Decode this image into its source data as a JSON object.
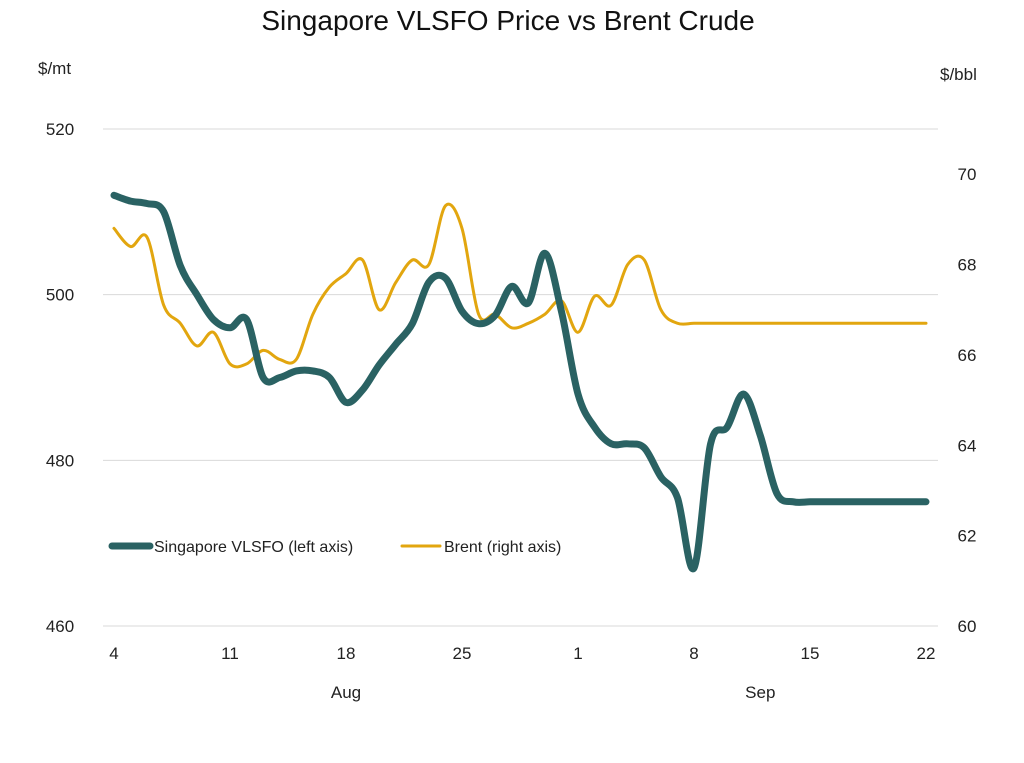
{
  "chart_data": {
    "type": "line",
    "title": "Singapore VLSFO Price vs Brent Crude",
    "left_axis": {
      "unit": "$/mt",
      "ylim": [
        460,
        520
      ],
      "ticks": [
        460,
        480,
        500,
        520
      ]
    },
    "right_axis": {
      "unit": "$/bbl",
      "ylim": [
        60,
        71
      ],
      "ticks": [
        60,
        62,
        64,
        66,
        68,
        70
      ]
    },
    "x_axis": {
      "tick_labels": [
        "4",
        "11",
        "18",
        "25",
        "1",
        "8",
        "15",
        "22"
      ],
      "tick_days": [
        4,
        11,
        18,
        25,
        32,
        39,
        46,
        53
      ],
      "month_labels": [
        {
          "label": "Aug",
          "day": 18
        },
        {
          "label": "Sep",
          "day": 43
        }
      ]
    },
    "grid": "horizontal",
    "legend_position": "lower-left",
    "series": [
      {
        "name": "Singapore VLSFO (left axis)",
        "axis": "left",
        "color": "#2a6263",
        "x": [
          4,
          5,
          6,
          7,
          8,
          9,
          10,
          11,
          12,
          13,
          14,
          15,
          16,
          17,
          18,
          19,
          20,
          21,
          22,
          23,
          24,
          25,
          26,
          27,
          28,
          29,
          30,
          31,
          32,
          33,
          34,
          35,
          36,
          37,
          38,
          39,
          40,
          41,
          42,
          43,
          44,
          45,
          46,
          47,
          48,
          49,
          50,
          51,
          52,
          53
        ],
        "values": [
          512,
          511.3,
          511,
          510,
          503.5,
          500,
          497,
          496,
          497,
          490,
          490,
          490.8,
          490.8,
          490,
          487,
          488.5,
          491.5,
          494,
          496.5,
          501.5,
          502,
          498,
          496.5,
          497.5,
          501,
          499,
          505,
          498,
          488,
          484,
          482,
          482,
          481.5,
          478,
          475.5,
          467,
          482,
          484,
          488,
          483,
          476,
          475,
          475,
          475,
          475,
          475,
          475,
          475,
          475,
          475
        ]
      },
      {
        "name": "Brent (right axis)",
        "axis": "right",
        "color": "#e2a60f",
        "x": [
          4,
          5,
          6,
          7,
          8,
          9,
          10,
          11,
          12,
          13,
          14,
          15,
          16,
          17,
          18,
          19,
          20,
          21,
          22,
          23,
          24,
          25,
          26,
          27,
          28,
          29,
          30,
          31,
          32,
          33,
          34,
          35,
          36,
          37,
          38,
          39,
          40,
          41,
          42,
          43,
          44,
          45,
          46,
          47,
          48,
          49,
          50,
          51,
          52,
          53
        ],
        "values": [
          68.8,
          68.4,
          68.6,
          67.1,
          66.7,
          66.2,
          66.5,
          65.8,
          65.8,
          66.1,
          65.9,
          65.9,
          66.9,
          67.5,
          67.8,
          68.1,
          67.0,
          67.6,
          68.1,
          68.0,
          69.3,
          68.8,
          66.9,
          66.9,
          66.6,
          66.7,
          66.9,
          67.2,
          66.5,
          67.3,
          67.1,
          68.0,
          68.1,
          67.0,
          66.7,
          66.7,
          66.7,
          66.7,
          66.7,
          66.7,
          66.7,
          66.7,
          66.7,
          66.7,
          66.7,
          66.7,
          66.7,
          66.7,
          66.7,
          66.7
        ]
      }
    ]
  }
}
